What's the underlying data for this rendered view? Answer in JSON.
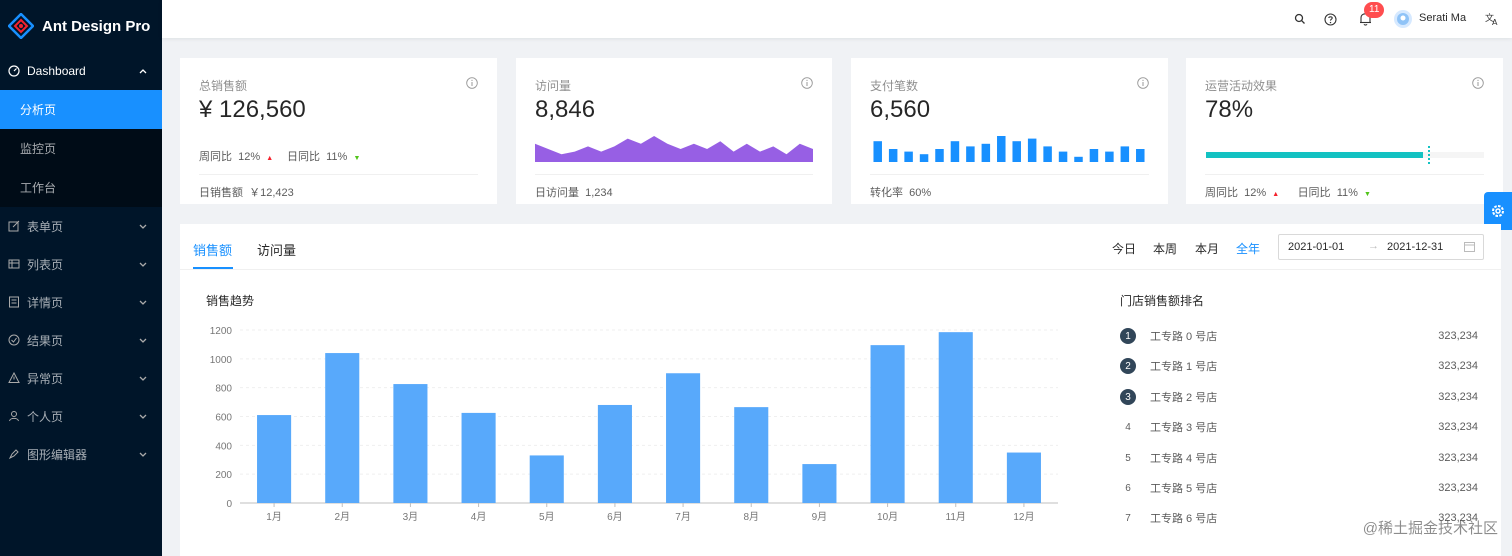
{
  "app": {
    "title": "Ant Design Pro"
  },
  "header": {
    "notification_count": "11",
    "user_name": "Serati Ma"
  },
  "sidebar": {
    "dashboard": {
      "label": "Dashboard",
      "items": [
        "分析页",
        "监控页",
        "工作台"
      ]
    },
    "groups": [
      "表单页",
      "列表页",
      "详情页",
      "结果页",
      "异常页",
      "个人页",
      "图形编辑器"
    ]
  },
  "cards": {
    "sales": {
      "title": "总销售额",
      "value": "¥ 126,560",
      "week_label": "周同比",
      "week_value": "12%",
      "day_label": "日同比",
      "day_value": "11%",
      "footer_label": "日销售额",
      "footer_value": "￥12,423"
    },
    "visits": {
      "title": "访问量",
      "value": "8,846",
      "footer_label": "日访问量",
      "footer_value": "1,234"
    },
    "payments": {
      "title": "支付笔数",
      "value": "6,560",
      "footer_label": "转化率",
      "footer_value": "60%"
    },
    "operations": {
      "title": "运营活动效果",
      "value": "78%",
      "progress": 0.78,
      "week_label": "周同比",
      "week_value": "12%",
      "day_label": "日同比",
      "day_value": "11%"
    }
  },
  "sales_panel": {
    "tabs": [
      "销售额",
      "访问量"
    ],
    "periods": [
      "今日",
      "本周",
      "本月",
      "全年"
    ],
    "date_start": "2021-01-01",
    "date_end": "2021-12-31",
    "chart_title": "销售趋势",
    "ranking_title": "门店销售额排名",
    "ranking": [
      {
        "rank": "1",
        "name": "工专路 0 号店",
        "value": "323,234"
      },
      {
        "rank": "2",
        "name": "工专路 1 号店",
        "value": "323,234"
      },
      {
        "rank": "3",
        "name": "工专路 2 号店",
        "value": "323,234"
      },
      {
        "rank": "4",
        "name": "工专路 3 号店",
        "value": "323,234"
      },
      {
        "rank": "5",
        "name": "工专路 4 号店",
        "value": "323,234"
      },
      {
        "rank": "6",
        "name": "工专路 5 号店",
        "value": "323,234"
      },
      {
        "rank": "7",
        "name": "工专路 6 号店",
        "value": "323,234"
      }
    ]
  },
  "watermark": "@稀土掘金技术社区",
  "chart_data": [
    {
      "type": "bar",
      "title": "销售趋势",
      "categories": [
        "1月",
        "2月",
        "3月",
        "4月",
        "5月",
        "6月",
        "7月",
        "8月",
        "9月",
        "10月",
        "11月",
        "12月"
      ],
      "values": [
        610,
        1040,
        825,
        625,
        330,
        680,
        900,
        665,
        270,
        1095,
        1185,
        350
      ],
      "ylim": [
        0,
        1200
      ],
      "yticks": [
        0,
        200,
        400,
        600,
        800,
        1000,
        1200
      ],
      "color": "#58a9fb"
    },
    {
      "type": "area",
      "title": "访问量",
      "values": [
        7,
        5,
        3,
        4,
        6,
        4,
        6,
        9,
        7,
        10,
        7,
        5,
        7,
        5,
        8,
        4,
        7,
        4,
        6,
        3,
        7,
        5
      ],
      "color": "#975fe4"
    },
    {
      "type": "bar",
      "title": "支付笔数",
      "values": [
        8,
        5,
        4,
        3,
        5,
        8,
        6,
        7,
        10,
        8,
        9,
        6,
        4,
        2,
        5,
        4,
        6,
        5
      ],
      "color": "#1890ff"
    }
  ]
}
